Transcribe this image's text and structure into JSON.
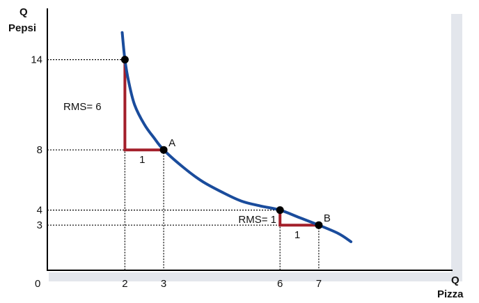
{
  "chart_data": {
    "type": "line",
    "xlabel_top": "Q",
    "xlabel_bottom": "Pizza",
    "ylabel_top": "Q",
    "ylabel_bottom": "Pepsi",
    "origin_label": "0",
    "xlim": [
      0,
      8.1
    ],
    "ylim": [
      0,
      16.4
    ],
    "x_ticks": [
      2,
      3,
      6,
      7
    ],
    "y_ticks": [
      3,
      4,
      8,
      14
    ],
    "curve": {
      "x": [
        1.93,
        2,
        2.1,
        2.25,
        2.5,
        2.75,
        3,
        3.5,
        4,
        4.5,
        5,
        5.5,
        6,
        6.5,
        7,
        7.5,
        7.83
      ],
      "y": [
        15.8,
        14,
        12.5,
        11.0,
        9.7,
        8.8,
        8,
        6.85,
        5.9,
        5.2,
        4.6,
        4.27,
        4,
        3.5,
        3,
        2.45,
        1.9
      ]
    },
    "points": [
      {
        "x": 2,
        "y": 14,
        "label": ""
      },
      {
        "x": 3,
        "y": 8,
        "label": "A"
      },
      {
        "x": 6,
        "y": 4,
        "label": ""
      },
      {
        "x": 7,
        "y": 3,
        "label": "B"
      }
    ],
    "steps": [
      {
        "x_from": 2,
        "y_from": 14,
        "x_to": 3,
        "y_to": 8,
        "run_label": "1",
        "rms_label": "RMS= 6"
      },
      {
        "x_from": 6,
        "y_from": 4,
        "x_to": 7,
        "y_to": 3,
        "run_label": "1",
        "rms_label": "RMS= 1"
      }
    ],
    "colors": {
      "curve": "#1a4c9c",
      "step": "#a31f2a",
      "point": "#000000",
      "shadow": "#e3e6ec"
    }
  }
}
